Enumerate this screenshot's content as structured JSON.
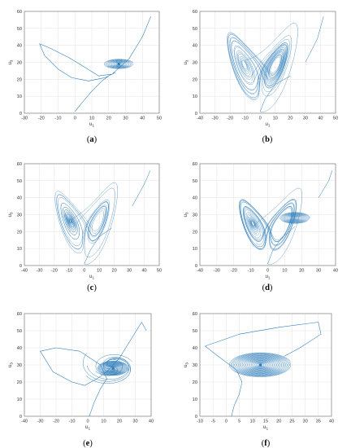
{
  "colors": {
    "trajectory": "#2a7ab8",
    "grid": "#e3e3e3",
    "axis": "#6e6e6e",
    "background": "#ffffff"
  },
  "chart_data": [
    {
      "id": "a",
      "type": "line",
      "label_letter": "a",
      "xlabel": "u",
      "xlabel_sub": "1",
      "ylabel": "u",
      "ylabel_sub": "3",
      "xlim": [
        -30,
        50
      ],
      "ylim": [
        0,
        60
      ],
      "xticks": [
        -30,
        -20,
        -10,
        0,
        10,
        20,
        30,
        40,
        50
      ],
      "yticks": [
        0,
        10,
        20,
        30,
        40,
        50,
        60
      ],
      "grid": true,
      "path_points": [
        [
          0,
          1
        ],
        [
          4,
          6
        ],
        [
          10,
          13
        ],
        [
          16,
          19
        ],
        [
          20,
          22
        ],
        [
          24,
          24
        ],
        [
          18,
          21
        ],
        [
          8,
          19
        ],
        [
          -2,
          21
        ],
        [
          -10,
          26
        ],
        [
          -18,
          34
        ],
        [
          -21,
          41
        ],
        [
          -14,
          38
        ],
        [
          -4,
          33
        ],
        [
          6,
          27
        ],
        [
          14,
          22
        ],
        [
          22,
          23
        ],
        [
          32,
          32
        ],
        [
          40,
          45
        ],
        [
          45,
          57
        ]
      ],
      "spiral_center": [
        26,
        29
      ],
      "spiral_radius": [
        9,
        3.5
      ]
    },
    {
      "id": "b",
      "type": "line",
      "label_letter": "b",
      "xlabel": "u",
      "xlabel_sub": "1",
      "ylabel": "u",
      "ylabel_sub": "3",
      "xlim": [
        -40,
        50
      ],
      "ylim": [
        0,
        60
      ],
      "xticks": [
        -40,
        -30,
        -20,
        -10,
        0,
        10,
        20,
        30,
        40,
        50
      ],
      "yticks": [
        0,
        10,
        20,
        30,
        40,
        50,
        60
      ],
      "grid": true,
      "left_center": [
        -20,
        29
      ],
      "right_center": [
        22,
        25
      ],
      "entry_points": [
        [
          0,
          1
        ],
        [
          3,
          8
        ],
        [
          10,
          17
        ],
        [
          20,
          22
        ]
      ],
      "exit_points": [
        [
          30,
          30
        ],
        [
          38,
          44
        ],
        [
          42,
          57
        ]
      ]
    },
    {
      "id": "c",
      "type": "line",
      "label_letter": "c",
      "xlabel": "u",
      "xlabel_sub": "1",
      "ylabel": "u",
      "ylabel_sub": "3",
      "xlim": [
        -40,
        50
      ],
      "ylim": [
        0,
        60
      ],
      "xticks": [
        -40,
        -30,
        -20,
        -10,
        0,
        10,
        20,
        30,
        40,
        50
      ],
      "yticks": [
        0,
        10,
        20,
        30,
        40,
        50,
        60
      ],
      "grid": true,
      "left_center": [
        -16,
        29
      ],
      "right_center": [
        18,
        24
      ],
      "entry_points": [
        [
          0,
          1
        ],
        [
          4,
          9
        ],
        [
          10,
          17
        ],
        [
          18,
          22
        ]
      ],
      "exit_points": [
        [
          32,
          35
        ],
        [
          40,
          48
        ],
        [
          44,
          56
        ]
      ]
    },
    {
      "id": "d",
      "type": "line",
      "label_letter": "d",
      "xlabel": "u",
      "xlabel_sub": "1",
      "ylabel": "u",
      "ylabel_sub": "3",
      "xlim": [
        -40,
        40
      ],
      "ylim": [
        0,
        60
      ],
      "xticks": [
        -40,
        -30,
        -20,
        -10,
        0,
        10,
        20,
        30,
        40
      ],
      "yticks": [
        0,
        10,
        20,
        30,
        40,
        50,
        60
      ],
      "grid": true,
      "left_center": [
        -20,
        27
      ],
      "right_center": [
        16,
        28
      ],
      "entry_points": [
        [
          0,
          1
        ],
        [
          3,
          9
        ],
        [
          8,
          16
        ],
        [
          16,
          23
        ]
      ],
      "exit_points": [
        [
          30,
          40
        ],
        [
          36,
          50
        ],
        [
          38,
          56
        ]
      ]
    },
    {
      "id": "e",
      "type": "line",
      "label_letter": "e",
      "xlabel": "u",
      "xlabel_sub": "1",
      "ylabel": "u",
      "ylabel_sub": "3",
      "xlim": [
        -40,
        40
      ],
      "ylim": [
        0,
        60
      ],
      "xticks": [
        -40,
        -30,
        -20,
        -10,
        0,
        10,
        20,
        30,
        40
      ],
      "yticks": [
        0,
        10,
        20,
        30,
        40,
        50,
        60
      ],
      "grid": true,
      "path_points": [
        [
          1,
          0
        ],
        [
          4,
          8
        ],
        [
          8,
          16
        ],
        [
          12,
          22
        ],
        [
          8,
          30
        ],
        [
          -5,
          38
        ],
        [
          -20,
          40
        ],
        [
          -30,
          38
        ],
        [
          -22,
          26
        ],
        [
          -10,
          20
        ],
        [
          -2,
          18
        ],
        [
          6,
          22
        ],
        [
          12,
          26
        ],
        [
          20,
          34
        ],
        [
          34,
          55
        ],
        [
          37,
          50
        ]
      ],
      "spiral_center": [
        16,
        28
      ],
      "spiral_radius": [
        10,
        5
      ]
    },
    {
      "id": "f",
      "type": "line",
      "label_letter": "f",
      "xlabel": "u",
      "xlabel_sub": "1",
      "ylabel": "u",
      "ylabel_sub": "3",
      "xlim": [
        -10,
        40
      ],
      "ylim": [
        0,
        60
      ],
      "xticks": [
        -10,
        -5,
        0,
        5,
        10,
        15,
        20,
        25,
        30,
        35,
        40
      ],
      "yticks": [
        0,
        10,
        20,
        30,
        40,
        50,
        60
      ],
      "grid": true,
      "path_points": [
        [
          2,
          0
        ],
        [
          3,
          6
        ],
        [
          5,
          13
        ],
        [
          6,
          20
        ],
        [
          4,
          27
        ],
        [
          -3,
          35
        ],
        [
          -8,
          41
        ],
        [
          5,
          48
        ],
        [
          20,
          52
        ],
        [
          35,
          55
        ],
        [
          36,
          48
        ],
        [
          28,
          40
        ],
        [
          22,
          35
        ]
      ],
      "spiral_center": [
        13,
        30
      ],
      "spiral_radius": [
        12,
        8
      ]
    }
  ]
}
